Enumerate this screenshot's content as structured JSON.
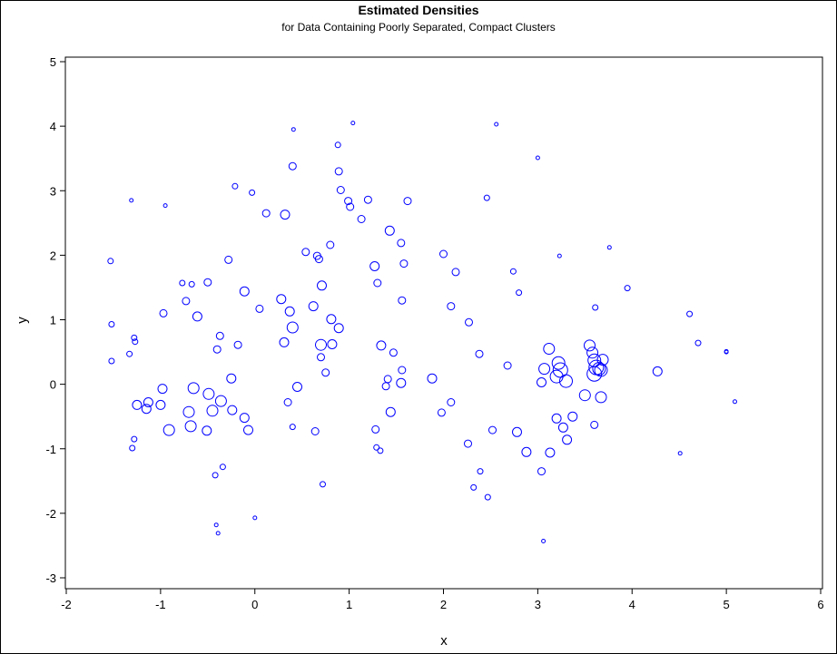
{
  "chart_data": {
    "type": "scatter",
    "title": "Estimated Densities",
    "subtitle": "for Data Containing Poorly Separated, Compact Clusters",
    "xlabel": "x",
    "ylabel": "y",
    "xlim": [
      -2,
      6
    ],
    "ylim": [
      -3,
      5
    ],
    "xticks": [
      "-2",
      "-1",
      "0",
      "1",
      "2",
      "3",
      "4",
      "5",
      "6"
    ],
    "yticks": [
      "-3",
      "-2",
      "-1",
      "0",
      "1",
      "2",
      "3",
      "4",
      "5"
    ],
    "grid": false,
    "marker": "circle",
    "marker_color": "#0000ff",
    "size_encodes": "estimated density",
    "points": [
      [
        -1.53,
        1.91,
        3
      ],
      [
        -1.52,
        0.93,
        3
      ],
      [
        -1.52,
        0.36,
        3
      ],
      [
        -1.31,
        2.85,
        2
      ],
      [
        -1.33,
        0.47,
        3
      ],
      [
        -1.28,
        0.72,
        3
      ],
      [
        -1.27,
        0.66,
        3
      ],
      [
        -1.3,
        -0.99,
        3
      ],
      [
        -1.28,
        -0.85,
        3
      ],
      [
        -1.25,
        -0.32,
        5
      ],
      [
        -1.15,
        -0.38,
        5
      ],
      [
        -1.13,
        -0.28,
        5
      ],
      [
        -1.0,
        -0.32,
        5
      ],
      [
        -0.97,
        1.1,
        4
      ],
      [
        -0.98,
        -0.07,
        5
      ],
      [
        -0.95,
        2.77,
        2
      ],
      [
        -0.91,
        -0.71,
        6
      ],
      [
        -0.77,
        1.57,
        3
      ],
      [
        -0.73,
        1.29,
        4
      ],
      [
        -0.67,
        1.55,
        3
      ],
      [
        -0.61,
        1.05,
        5
      ],
      [
        -0.7,
        -0.43,
        6
      ],
      [
        -0.68,
        -0.65,
        6
      ],
      [
        -0.65,
        -0.06,
        6
      ],
      [
        -0.5,
        1.58,
        4
      ],
      [
        -0.51,
        -0.72,
        5
      ],
      [
        -0.49,
        -0.15,
        6
      ],
      [
        -0.45,
        -0.41,
        6
      ],
      [
        -0.42,
        -1.41,
        3
      ],
      [
        -0.41,
        -2.18,
        2
      ],
      [
        -0.39,
        -2.31,
        2
      ],
      [
        -0.36,
        -0.26,
        6
      ],
      [
        -0.4,
        0.54,
        4
      ],
      [
        -0.37,
        0.75,
        4
      ],
      [
        -0.34,
        -1.28,
        3
      ],
      [
        -0.28,
        1.93,
        4
      ],
      [
        -0.25,
        0.09,
        5
      ],
      [
        -0.24,
        -0.4,
        5
      ],
      [
        -0.21,
        3.07,
        3
      ],
      [
        -0.18,
        0.61,
        4
      ],
      [
        -0.11,
        1.44,
        5
      ],
      [
        -0.11,
        -0.52,
        5
      ],
      [
        -0.07,
        -0.71,
        5
      ],
      [
        -0.03,
        2.97,
        3
      ],
      [
        0.0,
        -2.07,
        2
      ],
      [
        0.05,
        1.17,
        4
      ],
      [
        0.12,
        2.65,
        4
      ],
      [
        0.28,
        1.32,
        5
      ],
      [
        0.32,
        2.63,
        5
      ],
      [
        0.31,
        0.65,
        5
      ],
      [
        0.35,
        -0.28,
        4
      ],
      [
        0.37,
        1.13,
        5
      ],
      [
        0.4,
        0.88,
        6
      ],
      [
        0.4,
        3.38,
        4
      ],
      [
        0.4,
        -0.66,
        3
      ],
      [
        0.41,
        3.95,
        2
      ],
      [
        0.45,
        -0.04,
        5
      ],
      [
        0.54,
        2.05,
        4
      ],
      [
        0.62,
        1.21,
        5
      ],
      [
        0.64,
        -0.73,
        4
      ],
      [
        0.66,
        1.99,
        4
      ],
      [
        0.68,
        1.94,
        4
      ],
      [
        0.7,
        0.61,
        6
      ],
      [
        0.71,
        1.53,
        5
      ],
      [
        0.7,
        0.42,
        4
      ],
      [
        0.72,
        -1.55,
        3
      ],
      [
        0.75,
        0.18,
        4
      ],
      [
        0.8,
        2.16,
        4
      ],
      [
        0.81,
        1.01,
        5
      ],
      [
        0.82,
        0.62,
        5
      ],
      [
        0.89,
        0.87,
        5
      ],
      [
        0.88,
        3.71,
        3
      ],
      [
        0.89,
        3.3,
        4
      ],
      [
        0.91,
        3.01,
        4
      ],
      [
        0.99,
        2.84,
        4
      ],
      [
        1.01,
        2.75,
        4
      ],
      [
        1.04,
        4.05,
        2
      ],
      [
        1.13,
        2.56,
        4
      ],
      [
        1.2,
        2.86,
        4
      ],
      [
        1.27,
        1.83,
        5
      ],
      [
        1.28,
        -0.7,
        4
      ],
      [
        1.29,
        -0.98,
        3
      ],
      [
        1.3,
        1.57,
        4
      ],
      [
        1.33,
        -1.03,
        3
      ],
      [
        1.34,
        0.6,
        5
      ],
      [
        1.39,
        -0.03,
        4
      ],
      [
        1.41,
        0.08,
        4
      ],
      [
        1.43,
        2.38,
        5
      ],
      [
        1.44,
        -0.43,
        5
      ],
      [
        1.47,
        0.49,
        4
      ],
      [
        1.55,
        2.19,
        4
      ],
      [
        1.56,
        1.3,
        4
      ],
      [
        1.55,
        0.02,
        5
      ],
      [
        1.56,
        0.22,
        4
      ],
      [
        1.58,
        1.87,
        4
      ],
      [
        1.62,
        2.84,
        4
      ],
      [
        1.88,
        0.09,
        5
      ],
      [
        1.98,
        -0.44,
        4
      ],
      [
        2.0,
        2.02,
        4
      ],
      [
        2.08,
        1.21,
        4
      ],
      [
        2.08,
        -0.28,
        4
      ],
      [
        2.13,
        1.74,
        4
      ],
      [
        2.26,
        -0.92,
        4
      ],
      [
        2.27,
        0.96,
        4
      ],
      [
        2.32,
        -1.6,
        3
      ],
      [
        2.38,
        0.47,
        4
      ],
      [
        2.39,
        -1.35,
        3
      ],
      [
        2.46,
        2.89,
        3
      ],
      [
        2.47,
        -1.75,
        3
      ],
      [
        2.52,
        -0.71,
        4
      ],
      [
        2.56,
        4.03,
        2
      ],
      [
        2.68,
        0.29,
        4
      ],
      [
        2.74,
        1.75,
        3
      ],
      [
        2.78,
        -0.74,
        5
      ],
      [
        2.8,
        1.42,
        3
      ],
      [
        2.88,
        -1.05,
        5
      ],
      [
        3.0,
        3.51,
        2
      ],
      [
        3.04,
        0.03,
        5
      ],
      [
        3.04,
        -1.35,
        4
      ],
      [
        3.06,
        -2.43,
        2
      ],
      [
        3.07,
        0.24,
        6
      ],
      [
        3.12,
        0.55,
        6
      ],
      [
        3.13,
        -1.06,
        5
      ],
      [
        3.2,
        0.12,
        7
      ],
      [
        3.2,
        -0.53,
        5
      ],
      [
        3.22,
        0.33,
        7
      ],
      [
        3.23,
        1.99,
        2
      ],
      [
        3.24,
        0.22,
        8
      ],
      [
        3.27,
        -0.67,
        5
      ],
      [
        3.3,
        0.05,
        7
      ],
      [
        3.31,
        -0.86,
        5
      ],
      [
        3.37,
        -0.5,
        5
      ],
      [
        3.5,
        -0.17,
        6
      ],
      [
        3.55,
        0.6,
        6
      ],
      [
        3.58,
        0.49,
        6
      ],
      [
        3.6,
        0.16,
        8
      ],
      [
        3.6,
        0.37,
        7
      ],
      [
        3.6,
        -0.63,
        4
      ],
      [
        3.61,
        1.19,
        3
      ],
      [
        3.62,
        0.26,
        8
      ],
      [
        3.65,
        0.24,
        7
      ],
      [
        3.67,
        -0.2,
        6
      ],
      [
        3.67,
        0.22,
        7
      ],
      [
        3.69,
        0.38,
        6
      ],
      [
        3.76,
        2.12,
        2
      ],
      [
        3.95,
        1.49,
        3
      ],
      [
        4.27,
        0.2,
        5
      ],
      [
        4.51,
        -1.07,
        2
      ],
      [
        4.61,
        1.09,
        3
      ],
      [
        4.7,
        0.64,
        3
      ],
      [
        5.0,
        0.51,
        2
      ],
      [
        5.0,
        0.5,
        2
      ],
      [
        5.09,
        -0.27,
        2
      ]
    ]
  }
}
